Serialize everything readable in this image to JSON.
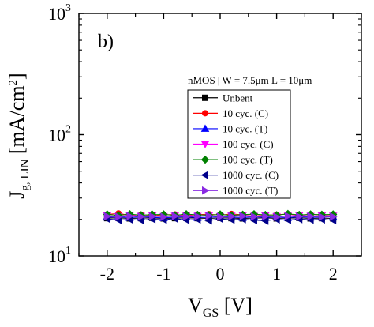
{
  "chart_data": {
    "type": "scatter",
    "panel_label": "b)",
    "xlabel": {
      "main": "V",
      "sub": "GS",
      "unit": " [V]"
    },
    "ylabel": {
      "main": "J",
      "sub": "g, LIN",
      "unit": " [mA/cm",
      "sup": "2",
      "close": "]"
    },
    "xlim": [
      -2.5,
      2.5
    ],
    "ylim": [
      10,
      1000
    ],
    "y_scale": "log",
    "x_ticks": [
      -2,
      -1,
      0,
      1,
      2
    ],
    "x_tick_labels": [
      "-2",
      "-1",
      "0",
      "1",
      "2"
    ],
    "y_ticks": [
      10,
      100,
      1000
    ],
    "y_tick_labels": [
      {
        "base": "10",
        "exp": "1"
      },
      {
        "base": "10",
        "exp": "2"
      },
      {
        "base": "10",
        "exp": "3"
      }
    ],
    "legend_title": "nMOS | W = 7.5μm  L = 10μm",
    "legend_position": "right",
    "x": [
      -2.0,
      -1.8,
      -1.6,
      -1.4,
      -1.2,
      -1.0,
      -0.8,
      -0.6,
      -0.4,
      -0.2,
      0.0,
      0.2,
      0.4,
      0.6,
      0.8,
      1.0,
      1.2,
      1.4,
      1.6,
      1.8,
      2.0
    ],
    "series": [
      {
        "name": "Unbent",
        "color": "#000000",
        "marker": "square",
        "values": [
          20.5,
          20.6,
          20.4,
          20.5,
          20.6,
          20.4,
          20.5,
          20.6,
          20.5,
          20.4,
          20.6,
          20.5,
          20.4,
          20.5,
          20.6,
          20.4,
          20.5,
          20.6,
          20.4,
          20.5,
          20.4
        ]
      },
      {
        "name": "10 cyc. (C)",
        "color": "#ff0000",
        "marker": "circle",
        "values": [
          22.0,
          22.4,
          21.6,
          21.9,
          21.5,
          21.8,
          22.0,
          21.6,
          21.9,
          22.1,
          21.7,
          22.2,
          21.8,
          22.0,
          21.6,
          21.9,
          22.1,
          21.7,
          22.0,
          21.8,
          21.9
        ]
      },
      {
        "name": "10 cyc. (T)",
        "color": "#0000ff",
        "marker": "triangle-up",
        "values": [
          20.8,
          21.0,
          20.7,
          21.0,
          20.8,
          20.6,
          20.9,
          21.0,
          20.7,
          20.8,
          21.0,
          20.9,
          20.7,
          21.0,
          20.8,
          20.9,
          20.7,
          21.0,
          20.8,
          20.9,
          21.0
        ]
      },
      {
        "name": "100 cyc. (C)",
        "color": "#ff00ff",
        "marker": "triangle-down",
        "values": [
          21.5,
          21.2,
          21.6,
          21.3,
          21.5,
          21.2,
          21.4,
          21.6,
          21.3,
          21.5,
          21.2,
          21.4,
          21.6,
          21.3,
          21.5,
          21.2,
          21.4,
          21.6,
          21.3,
          21.5,
          21.4
        ]
      },
      {
        "name": "100 cyc. (T)",
        "color": "#008000",
        "marker": "diamond",
        "values": [
          22.0,
          21.6,
          22.1,
          21.7,
          21.9,
          22.0,
          21.6,
          22.1,
          21.8,
          21.7,
          22.0,
          21.6,
          21.9,
          22.1,
          21.8,
          21.7,
          22.2,
          21.8,
          22.0,
          21.9,
          22.0
        ]
      },
      {
        "name": "1000 cyc. (C)",
        "color": "#00008b",
        "marker": "triangle-left",
        "values": [
          20.2,
          19.8,
          20.0,
          19.7,
          20.1,
          19.9,
          20.3,
          19.8,
          20.0,
          19.6,
          20.2,
          19.9,
          20.1,
          19.7,
          19.5,
          20.0,
          19.8,
          20.1,
          19.9,
          20.0,
          19.7
        ]
      },
      {
        "name": "1000 cyc. (T)",
        "color": "#8a2be2",
        "marker": "triangle-right",
        "values": [
          21.2,
          21.0,
          21.3,
          21.1,
          21.2,
          21.0,
          21.3,
          21.1,
          21.2,
          21.4,
          21.0,
          21.2,
          21.3,
          21.1,
          21.2,
          21.0,
          21.3,
          21.1,
          21.2,
          21.0,
          21.1
        ]
      }
    ]
  }
}
